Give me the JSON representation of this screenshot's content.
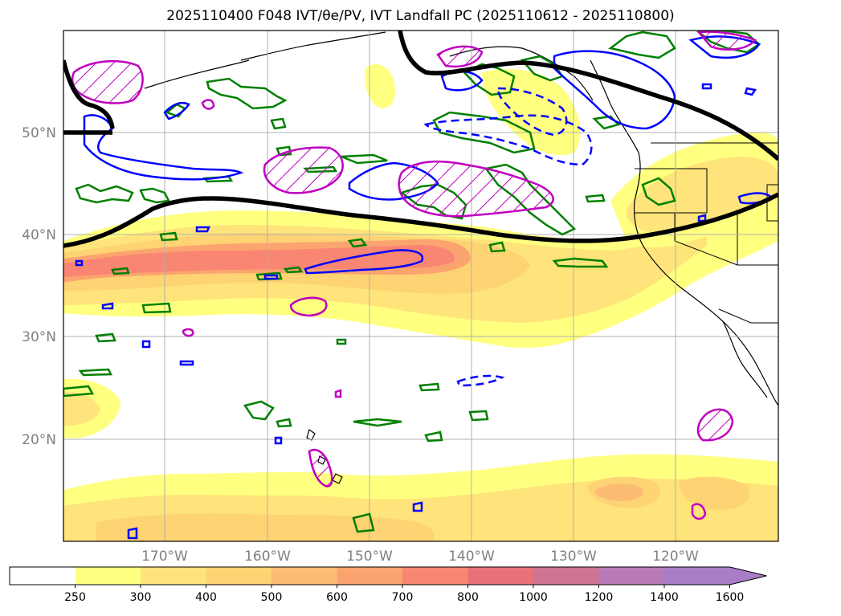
{
  "title": "2025110400 F048 IVT/θe/PV, IVT Landfall PC (2025110612 - 2025110800)",
  "lat_labels": [
    "50°N",
    "40°N",
    "30°N",
    "20°N"
  ],
  "lon_labels": [
    "170°W",
    "160°W",
    "150°W",
    "140°W",
    "130°W",
    "120°W"
  ],
  "colorbar": {
    "ticks": [
      "250",
      "300",
      "400",
      "500",
      "600",
      "700",
      "800",
      "1000",
      "1200",
      "1400",
      "1600"
    ],
    "colors": [
      "#ffffff",
      "#ffff80",
      "#fee47a",
      "#fdd374",
      "#fcbc73",
      "#fca470",
      "#f98672",
      "#e8727a",
      "#d07494",
      "#b97ab8",
      "#a97ec6"
    ]
  },
  "colors": {
    "ivt_fill_low": "#ffff80",
    "ivt_fill_mid": "#fdd374",
    "ivt_fill_high": "#f98672",
    "jet_line": "#000000",
    "theta_e_contour": "#0000ff",
    "pv_contour": "#008000",
    "landfall_pc_contour": "#c000c0",
    "coastline": "#000000",
    "grid": "#b0b0b0"
  }
}
